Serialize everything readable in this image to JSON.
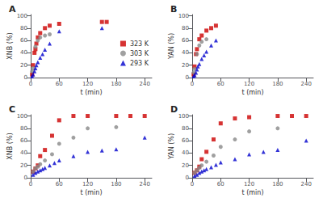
{
  "chart_data": [
    {
      "type": "scatter",
      "title": "A",
      "xlabel": "t (min)",
      "ylabel": "XNB (%)",
      "xlim": [
        0,
        255
      ],
      "xticks": [
        0,
        60,
        120,
        180,
        240
      ],
      "ylim": [
        0,
        102
      ],
      "yticks": [
        0,
        20,
        40,
        60,
        80,
        100
      ],
      "grid": false,
      "legend": "right",
      "series": [
        {
          "name": "323 K",
          "color": "#cc0000",
          "marker": "square",
          "x": [
            3,
            5,
            8,
            10,
            12,
            15,
            20,
            30,
            40,
            60,
            150,
            160
          ],
          "values": [
            5,
            20,
            40,
            46,
            55,
            65,
            72,
            80,
            84,
            87,
            90,
            90
          ]
        },
        {
          "name": "303 K",
          "color": "#888888",
          "marker": "circle",
          "x": [
            3,
            5,
            10,
            15,
            20,
            30,
            40
          ],
          "values": [
            10,
            15,
            50,
            60,
            65,
            68,
            70
          ]
        },
        {
          "name": "293 K",
          "color": "#0000cc",
          "marker": "triangle",
          "x": [
            3,
            5,
            8,
            10,
            12,
            15,
            20,
            25,
            30,
            40,
            60,
            150
          ],
          "values": [
            2,
            5,
            10,
            15,
            20,
            25,
            32,
            38,
            45,
            55,
            75,
            80
          ]
        }
      ]
    },
    {
      "type": "scatter",
      "title": "B",
      "xlabel": "t (min)",
      "ylabel": "YAN (%)",
      "xlim": [
        0,
        255
      ],
      "xticks": [
        0,
        60,
        120,
        180,
        240
      ],
      "ylim": [
        0,
        102
      ],
      "yticks": [
        0,
        20,
        40,
        60,
        80,
        100
      ],
      "grid": false,
      "series": [
        {
          "name": "323 K",
          "color": "#cc0000",
          "marker": "square",
          "x": [
            3,
            5,
            8,
            10,
            15,
            20,
            30,
            40,
            50
          ],
          "values": [
            5,
            18,
            38,
            46,
            62,
            68,
            76,
            80,
            84
          ]
        },
        {
          "name": "303 K",
          "color": "#888888",
          "marker": "circle",
          "x": [
            3,
            5,
            10,
            15,
            20,
            30
          ],
          "values": [
            8,
            14,
            38,
            52,
            58,
            62
          ]
        },
        {
          "name": "293 K",
          "color": "#0000cc",
          "marker": "triangle",
          "x": [
            3,
            5,
            8,
            10,
            12,
            15,
            20,
            25,
            30,
            40,
            50
          ],
          "values": [
            2,
            4,
            8,
            13,
            18,
            22,
            30,
            36,
            42,
            52,
            60
          ]
        }
      ]
    },
    {
      "type": "scatter",
      "title": "C",
      "xlabel": "t (min)",
      "ylabel": "XNB (%)",
      "xlim": [
        0,
        255
      ],
      "xticks": [
        0,
        60,
        120,
        180,
        240
      ],
      "ylim": [
        0,
        102
      ],
      "yticks": [
        0,
        20,
        40,
        60,
        80,
        100
      ],
      "grid": false,
      "series": [
        {
          "name": "323 K",
          "color": "#cc0000",
          "marker": "square",
          "x": [
            5,
            10,
            15,
            20,
            30,
            45,
            60,
            90,
            120,
            180,
            210,
            240
          ],
          "values": [
            10,
            15,
            20,
            35,
            45,
            68,
            93,
            100,
            100,
            100,
            100,
            100
          ]
        },
        {
          "name": "303 K",
          "color": "#888888",
          "marker": "circle",
          "x": [
            5,
            10,
            15,
            20,
            30,
            45,
            60,
            90,
            120,
            180
          ],
          "values": [
            10,
            15,
            18,
            22,
            28,
            38,
            55,
            65,
            80,
            82
          ]
        },
        {
          "name": "293 K",
          "color": "#0000cc",
          "marker": "triangle",
          "x": [
            5,
            10,
            15,
            20,
            25,
            30,
            40,
            50,
            60,
            90,
            120,
            150,
            180,
            240
          ],
          "values": [
            5,
            8,
            10,
            12,
            14,
            16,
            20,
            24,
            28,
            35,
            42,
            44,
            46,
            65
          ]
        }
      ]
    },
    {
      "type": "scatter",
      "title": "D",
      "xlabel": "t (min)",
      "ylabel": "YAN (%)",
      "xlim": [
        0,
        255
      ],
      "xticks": [
        0,
        60,
        120,
        180,
        240
      ],
      "ylim": [
        0,
        102
      ],
      "yticks": [
        0,
        20,
        40,
        60,
        80,
        100
      ],
      "grid": false,
      "series": [
        {
          "name": "323 K",
          "color": "#cc0000",
          "marker": "square",
          "x": [
            5,
            10,
            15,
            20,
            30,
            45,
            60,
            90,
            120,
            180,
            210,
            240
          ],
          "values": [
            8,
            12,
            18,
            30,
            42,
            62,
            88,
            96,
            98,
            100,
            100,
            100
          ]
        },
        {
          "name": "303 K",
          "color": "#888888",
          "marker": "circle",
          "x": [
            5,
            10,
            15,
            20,
            30,
            45,
            60,
            90,
            120,
            180
          ],
          "values": [
            8,
            12,
            16,
            20,
            26,
            36,
            50,
            62,
            75,
            80
          ]
        },
        {
          "name": "293 K",
          "color": "#0000cc",
          "marker": "triangle",
          "x": [
            5,
            10,
            15,
            20,
            25,
            30,
            40,
            50,
            60,
            90,
            120,
            150,
            180,
            240
          ],
          "values": [
            3,
            5,
            8,
            10,
            12,
            14,
            17,
            21,
            25,
            30,
            38,
            42,
            45,
            60
          ]
        }
      ]
    }
  ]
}
